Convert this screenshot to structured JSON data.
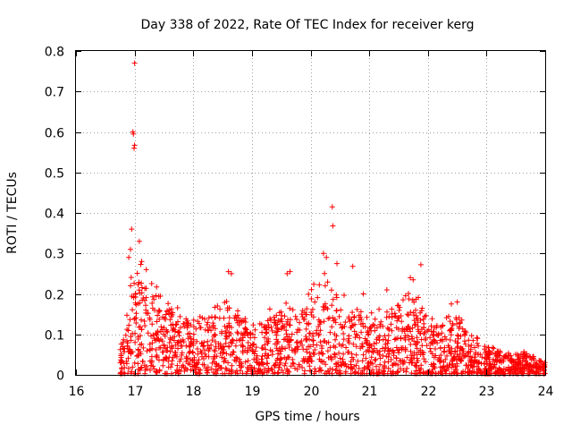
{
  "chart_data": {
    "type": "scatter",
    "title": "Day 338 of 2022, Rate Of TEC Index for receiver kerg",
    "xlabel": "GPS time / hours",
    "ylabel": "ROTI / TECUs",
    "xlim": [
      16,
      24
    ],
    "ylim": [
      0,
      0.8
    ],
    "x_ticks": [
      16,
      17,
      18,
      19,
      20,
      21,
      22,
      23,
      24
    ],
    "x_tick_labels": [
      "16",
      "17",
      "18",
      "19",
      "20",
      "21",
      "22",
      "23",
      "24"
    ],
    "y_ticks": [
      0,
      0.1,
      0.2,
      0.3,
      0.4,
      0.5,
      0.6,
      0.7,
      0.8
    ],
    "y_tick_labels": [
      "0",
      "0.1",
      "0.2",
      "0.3",
      "0.4",
      "0.5",
      "0.6",
      "0.7",
      "0.8"
    ],
    "grid": true,
    "marker": "+",
    "color": "#ff0000",
    "x_data_start": 16.75,
    "x_data_end": 24.0,
    "envelope": [
      {
        "x": 16.75,
        "y": 0.06
      },
      {
        "x": 16.9,
        "y": 0.2
      },
      {
        "x": 17.0,
        "y": 0.27
      },
      {
        "x": 17.2,
        "y": 0.25
      },
      {
        "x": 17.4,
        "y": 0.2
      },
      {
        "x": 17.6,
        "y": 0.18
      },
      {
        "x": 17.8,
        "y": 0.14
      },
      {
        "x": 18.0,
        "y": 0.13
      },
      {
        "x": 18.3,
        "y": 0.15
      },
      {
        "x": 18.6,
        "y": 0.17
      },
      {
        "x": 18.8,
        "y": 0.14
      },
      {
        "x": 19.0,
        "y": 0.12
      },
      {
        "x": 19.3,
        "y": 0.15
      },
      {
        "x": 19.6,
        "y": 0.17
      },
      {
        "x": 19.8,
        "y": 0.15
      },
      {
        "x": 20.0,
        "y": 0.2
      },
      {
        "x": 20.3,
        "y": 0.24
      },
      {
        "x": 20.5,
        "y": 0.2
      },
      {
        "x": 20.7,
        "y": 0.15
      },
      {
        "x": 21.0,
        "y": 0.15
      },
      {
        "x": 21.3,
        "y": 0.15
      },
      {
        "x": 21.6,
        "y": 0.2
      },
      {
        "x": 21.8,
        "y": 0.19
      },
      {
        "x": 22.0,
        "y": 0.13
      },
      {
        "x": 22.3,
        "y": 0.13
      },
      {
        "x": 22.5,
        "y": 0.16
      },
      {
        "x": 22.7,
        "y": 0.1
      },
      {
        "x": 23.0,
        "y": 0.07
      },
      {
        "x": 23.3,
        "y": 0.06
      },
      {
        "x": 23.6,
        "y": 0.06
      },
      {
        "x": 24.0,
        "y": 0.03
      }
    ],
    "notable_points": [
      {
        "x": 17.0,
        "y": 0.77
      },
      {
        "x": 16.97,
        "y": 0.6
      },
      {
        "x": 16.98,
        "y": 0.595
      },
      {
        "x": 17.0,
        "y": 0.567
      },
      {
        "x": 16.99,
        "y": 0.56
      },
      {
        "x": 16.95,
        "y": 0.36
      },
      {
        "x": 16.93,
        "y": 0.31
      },
      {
        "x": 16.9,
        "y": 0.29
      },
      {
        "x": 17.08,
        "y": 0.33
      },
      {
        "x": 17.12,
        "y": 0.28
      },
      {
        "x": 17.2,
        "y": 0.26
      },
      {
        "x": 20.37,
        "y": 0.415
      },
      {
        "x": 20.38,
        "y": 0.368
      },
      {
        "x": 20.22,
        "y": 0.3
      },
      {
        "x": 20.27,
        "y": 0.29
      },
      {
        "x": 20.45,
        "y": 0.275
      },
      {
        "x": 20.72,
        "y": 0.268
      },
      {
        "x": 21.88,
        "y": 0.272
      },
      {
        "x": 19.65,
        "y": 0.255
      },
      {
        "x": 19.6,
        "y": 0.25
      },
      {
        "x": 18.6,
        "y": 0.255
      },
      {
        "x": 18.65,
        "y": 0.25
      },
      {
        "x": 21.7,
        "y": 0.24
      },
      {
        "x": 21.75,
        "y": 0.235
      },
      {
        "x": 22.5,
        "y": 0.18
      },
      {
        "x": 22.4,
        "y": 0.175
      },
      {
        "x": 21.3,
        "y": 0.21
      },
      {
        "x": 20.9,
        "y": 0.2
      }
    ]
  }
}
